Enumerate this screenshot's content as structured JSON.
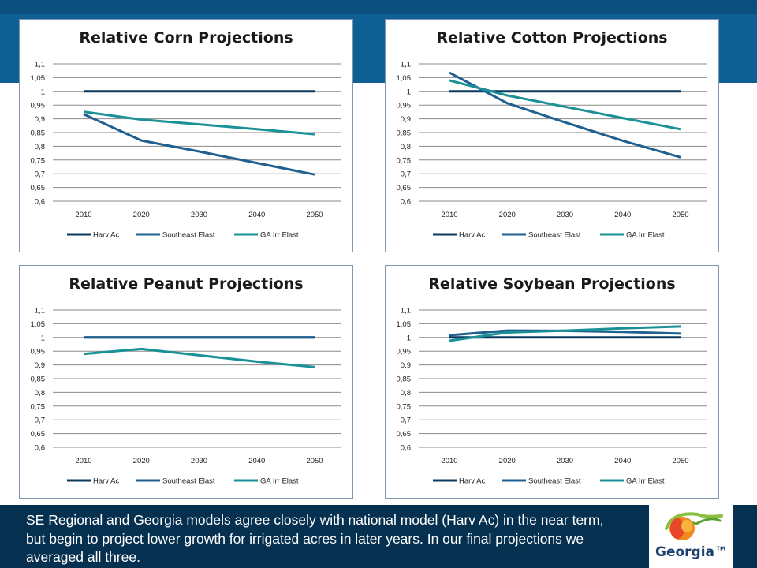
{
  "colors": {
    "harv_ac": "#0b3a5e",
    "southeast_elast": "#1f6091",
    "ga_irr_elast": "#1a9196",
    "top_band": "#0e5f94",
    "caption_bg": "#06304f"
  },
  "caption": {
    "text": "SE Regional and Georgia models agree closely with national model (Harv Ac) in the near term, but begin to project lower growth for irrigated acres in later years. In our final projections we averaged all three."
  },
  "logo": {
    "text": "Georgia™",
    "icon": "peach-icon"
  },
  "chart_data": [
    {
      "id": "corn",
      "type": "line",
      "title": "Relative Corn Projections",
      "x": [
        2010,
        2020,
        2030,
        2040,
        2050
      ],
      "ylim": [
        0.6,
        1.1
      ],
      "y_ticks": [
        "0,6",
        "0,65",
        "0,7",
        "0,75",
        "0,8",
        "0,85",
        "0,9",
        "0,95",
        "1",
        "1,05",
        "1,1"
      ],
      "x_ticks": [
        "2010",
        "2020",
        "2030",
        "2040",
        "2050"
      ],
      "grid": true,
      "legend_position": "bottom",
      "series": [
        {
          "name": "Harv Ac",
          "color": "#0b3a5e",
          "values": [
            1.0,
            1.0,
            1.0,
            1.0,
            1.0
          ]
        },
        {
          "name": "Southeast Elast",
          "color": "#1f6091",
          "values": [
            0.917,
            0.821,
            0.781,
            0.739,
            0.697
          ]
        },
        {
          "name": "GA Irr Elast",
          "color": "#1a9196",
          "values": [
            0.926,
            0.897,
            0.88,
            0.862,
            0.844
          ]
        }
      ]
    },
    {
      "id": "cotton",
      "type": "line",
      "title": "Relative Cotton Projections",
      "x": [
        2010,
        2020,
        2030,
        2040,
        2050
      ],
      "ylim": [
        0.6,
        1.1
      ],
      "y_ticks": [
        "0,6",
        "0,65",
        "0,7",
        "0,75",
        "0,8",
        "0,85",
        "0,9",
        "0,95",
        "1",
        "1,05",
        "1,1"
      ],
      "x_ticks": [
        "2010",
        "2020",
        "2030",
        "2040",
        "2050"
      ],
      "grid": true,
      "legend_position": "bottom",
      "series": [
        {
          "name": "Harv Ac",
          "color": "#0b3a5e",
          "values": [
            1.0,
            1.0,
            1.0,
            1.0,
            1.0
          ]
        },
        {
          "name": "Southeast Elast",
          "color": "#1f6091",
          "values": [
            1.068,
            0.957,
            0.887,
            0.82,
            0.76
          ]
        },
        {
          "name": "GA Irr Elast",
          "color": "#1a9196",
          "values": [
            1.04,
            0.985,
            0.944,
            0.903,
            0.862
          ]
        }
      ]
    },
    {
      "id": "peanut",
      "type": "line",
      "title": "Relative Peanut Projections",
      "x": [
        2010,
        2020,
        2030,
        2040,
        2050
      ],
      "ylim": [
        0.6,
        1.1
      ],
      "y_ticks": [
        "0,6",
        "0,65",
        "0,7",
        "0,75",
        "0,8",
        "0,85",
        "0,9",
        "0,95",
        "1",
        "1,05",
        "1,1"
      ],
      "x_ticks": [
        "2010",
        "2020",
        "2030",
        "2040",
        "2050"
      ],
      "grid": true,
      "legend_position": "bottom",
      "series": [
        {
          "name": "Harv Ac",
          "color": "#0b3a5e",
          "values": [
            1.0,
            1.0,
            1.0,
            1.0,
            1.0
          ]
        },
        {
          "name": "Southeast Elast",
          "color": "#1f6091",
          "values": [
            1.0,
            1.0,
            1.0,
            1.0,
            1.0
          ]
        },
        {
          "name": "GA Irr Elast",
          "color": "#1a9196",
          "values": [
            0.94,
            0.958,
            0.935,
            0.912,
            0.892
          ]
        }
      ]
    },
    {
      "id": "soybean",
      "type": "line",
      "title": "Relative Soybean Projections",
      "x": [
        2010,
        2020,
        2030,
        2040,
        2050
      ],
      "ylim": [
        0.6,
        1.1
      ],
      "y_ticks": [
        "0,6",
        "0,65",
        "0,7",
        "0,75",
        "0,8",
        "0,85",
        "0,9",
        "0,95",
        "1",
        "1,05",
        "1,1"
      ],
      "x_ticks": [
        "2010",
        "2020",
        "2030",
        "2040",
        "2050"
      ],
      "grid": true,
      "legend_position": "bottom",
      "series": [
        {
          "name": "Harv Ac",
          "color": "#0b3a5e",
          "values": [
            1.0,
            1.0,
            1.0,
            1.0,
            1.0
          ]
        },
        {
          "name": "Southeast Elast",
          "color": "#1f6091",
          "values": [
            1.008,
            1.025,
            1.024,
            1.02,
            1.014
          ]
        },
        {
          "name": "GA Irr Elast",
          "color": "#1a9196",
          "values": [
            0.988,
            1.018,
            1.025,
            1.033,
            1.04
          ]
        }
      ]
    }
  ]
}
